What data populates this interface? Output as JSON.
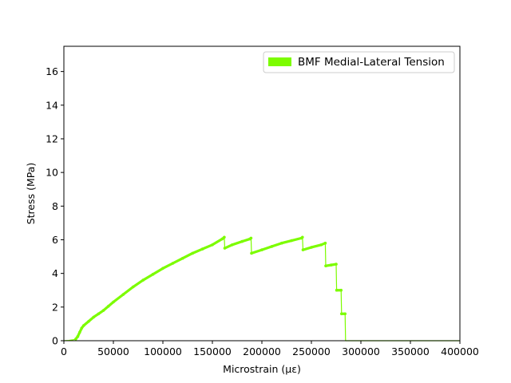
{
  "chart_data": {
    "type": "line",
    "xlabel": "Microstrain (με)",
    "ylabel": "Stress (MPa)",
    "xlim": [
      0,
      400000
    ],
    "ylim": [
      0,
      17.5
    ],
    "x_ticks": [
      0,
      50000,
      100000,
      150000,
      200000,
      250000,
      300000,
      350000,
      400000
    ],
    "x_tick_labels": [
      "0",
      "50000",
      "100000",
      "150000",
      "200000",
      "250000",
      "300000",
      "350000",
      "400000"
    ],
    "y_ticks": [
      0,
      2,
      4,
      6,
      8,
      10,
      12,
      14,
      16
    ],
    "y_tick_labels": [
      "0",
      "2",
      "4",
      "6",
      "8",
      "10",
      "12",
      "14",
      "16"
    ],
    "grid": false,
    "legend_position": "top-right",
    "series": [
      {
        "name": "BMF Medial-Lateral Tension",
        "color": "#7cfc00",
        "points": [
          [
            0,
            0
          ],
          [
            5000,
            0.02
          ],
          [
            9000,
            0.05
          ],
          [
            12000,
            0.1
          ],
          [
            14000,
            0.25
          ],
          [
            16000,
            0.5
          ],
          [
            18000,
            0.75
          ],
          [
            20000,
            0.9
          ],
          [
            25000,
            1.15
          ],
          [
            30000,
            1.4
          ],
          [
            35000,
            1.6
          ],
          [
            40000,
            1.8
          ],
          [
            45000,
            2.05
          ],
          [
            50000,
            2.3
          ],
          [
            60000,
            2.75
          ],
          [
            70000,
            3.2
          ],
          [
            80000,
            3.6
          ],
          [
            90000,
            3.95
          ],
          [
            100000,
            4.3
          ],
          [
            110000,
            4.6
          ],
          [
            120000,
            4.9
          ],
          [
            130000,
            5.2
          ],
          [
            140000,
            5.45
          ],
          [
            150000,
            5.7
          ],
          [
            160000,
            6.05
          ],
          [
            162000,
            6.15
          ],
          [
            162500,
            5.5
          ],
          [
            170000,
            5.7
          ],
          [
            180000,
            5.9
          ],
          [
            188000,
            6.05
          ],
          [
            189000,
            6.1
          ],
          [
            189500,
            5.2
          ],
          [
            200000,
            5.4
          ],
          [
            210000,
            5.6
          ],
          [
            220000,
            5.8
          ],
          [
            230000,
            5.95
          ],
          [
            240000,
            6.1
          ],
          [
            241000,
            6.15
          ],
          [
            241500,
            5.4
          ],
          [
            250000,
            5.55
          ],
          [
            260000,
            5.7
          ],
          [
            264000,
            5.8
          ],
          [
            264500,
            4.45
          ],
          [
            270000,
            4.5
          ],
          [
            275000,
            4.55
          ],
          [
            275500,
            3.0
          ],
          [
            280000,
            3.0
          ],
          [
            280500,
            1.6
          ],
          [
            284000,
            1.6
          ],
          [
            284500,
            0
          ],
          [
            300000,
            0
          ],
          [
            350000,
            0
          ],
          [
            400000,
            0
          ]
        ]
      }
    ]
  }
}
